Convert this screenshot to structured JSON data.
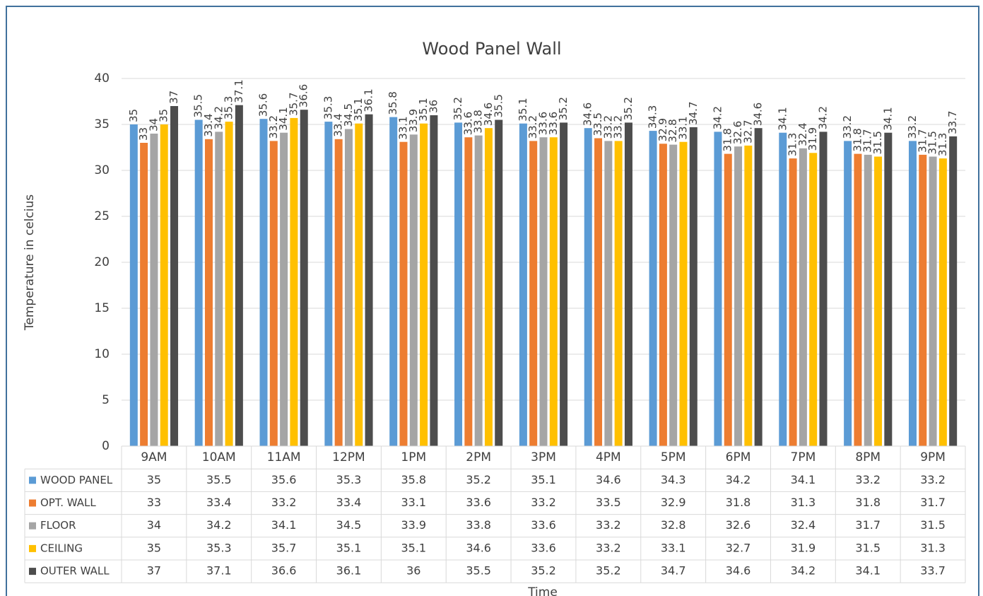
{
  "chart_data": {
    "type": "bar",
    "title": "Wood Panel Wall",
    "x_label": "Time",
    "y_label": "Temperature in celcius",
    "categories": [
      "9AM",
      "10AM",
      "11AM",
      "12PM",
      "1PM",
      "2PM",
      "3PM",
      "4PM",
      "5PM",
      "6PM",
      "7PM",
      "8PM",
      "9PM"
    ],
    "series": [
      {
        "name": "WOOD PANEL",
        "color": "#5b9bd5",
        "values": [
          35,
          35.5,
          35.6,
          35.3,
          35.8,
          35.2,
          35.1,
          34.6,
          34.3,
          34.2,
          34.1,
          33.2,
          33.2
        ]
      },
      {
        "name": "OPT. WALL",
        "color": "#ed7d31",
        "values": [
          33,
          33.4,
          33.2,
          33.4,
          33.1,
          33.6,
          33.2,
          33.5,
          32.9,
          31.8,
          31.3,
          31.8,
          31.7
        ]
      },
      {
        "name": "FLOOR",
        "color": "#a5a5a5",
        "values": [
          34,
          34.2,
          34.1,
          34.5,
          33.9,
          33.8,
          33.6,
          33.2,
          32.8,
          32.6,
          32.4,
          31.7,
          31.5
        ]
      },
      {
        "name": "CEILING",
        "color": "#ffc000",
        "values": [
          35,
          35.3,
          35.7,
          35.1,
          35.1,
          34.6,
          33.6,
          33.2,
          33.1,
          32.7,
          31.9,
          31.5,
          31.3
        ]
      },
      {
        "name": "OUTER WALL",
        "color": "#4d4d4d",
        "values": [
          37,
          37.1,
          36.6,
          36.1,
          36,
          35.5,
          35.2,
          35.2,
          34.7,
          34.6,
          34.2,
          34.1,
          33.7
        ]
      }
    ],
    "ylim": [
      0,
      40
    ],
    "yticks": [
      0,
      5,
      10,
      15,
      20,
      25,
      30,
      35,
      40
    ],
    "grid": true,
    "data_table": true
  }
}
